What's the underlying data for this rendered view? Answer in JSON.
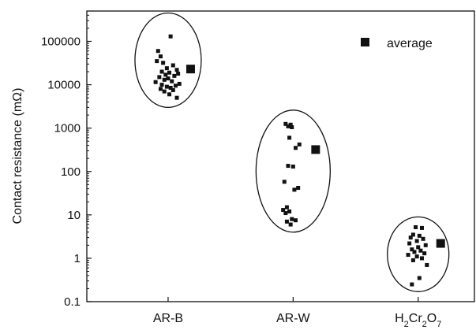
{
  "chart_data": {
    "type": "scatter",
    "y_scale": "log",
    "ylim": [
      0.1,
      500000
    ],
    "ylabel": "Contact resistance (mΩ)",
    "xlabel": "",
    "y_ticks": [
      {
        "value": 100000,
        "label": "100000"
      },
      {
        "value": 10000,
        "label": "10000"
      },
      {
        "value": 1000,
        "label": "1000"
      },
      {
        "value": 100,
        "label": "100"
      },
      {
        "value": 10,
        "label": "10"
      },
      {
        "value": 1,
        "label": "1"
      },
      {
        "value": 0.1,
        "label": "0.1"
      }
    ],
    "categories": [
      {
        "id": "ar-b",
        "label": "AR-B",
        "formula": null
      },
      {
        "id": "ar-w",
        "label": "AR-W",
        "formula": null
      },
      {
        "id": "h2cr2o7",
        "label": "H2Cr2O7",
        "formula": [
          {
            "t": "H"
          },
          {
            "t": "2",
            "sub": true
          },
          {
            "t": "Cr"
          },
          {
            "t": "2",
            "sub": true
          },
          {
            "t": "O"
          },
          {
            "t": "7",
            "sub": true
          }
        ]
      }
    ],
    "legend": {
      "label": "average",
      "position": "top-right"
    },
    "series": [
      {
        "category": "ar-b",
        "points": [
          {
            "x": 1.02,
            "y": 130000
          },
          {
            "x": 0.92,
            "y": 60000
          },
          {
            "x": 0.94,
            "y": 45000
          },
          {
            "x": 0.91,
            "y": 35000
          },
          {
            "x": 0.96,
            "y": 32000
          },
          {
            "x": 1.04,
            "y": 28000
          },
          {
            "x": 0.99,
            "y": 24000
          },
          {
            "x": 1.07,
            "y": 22000
          },
          {
            "x": 0.95,
            "y": 20000
          },
          {
            "x": 1.01,
            "y": 19000
          },
          {
            "x": 1.08,
            "y": 18000
          },
          {
            "x": 0.98,
            "y": 17000
          },
          {
            "x": 1.05,
            "y": 16000
          },
          {
            "x": 0.93,
            "y": 15000
          },
          {
            "x": 1.0,
            "y": 14000
          },
          {
            "x": 0.97,
            "y": 13000
          },
          {
            "x": 1.03,
            "y": 12000
          },
          {
            "x": 0.9,
            "y": 11500
          },
          {
            "x": 1.09,
            "y": 10500
          },
          {
            "x": 0.95,
            "y": 10000
          },
          {
            "x": 1.06,
            "y": 9500
          },
          {
            "x": 0.99,
            "y": 9000
          },
          {
            "x": 1.02,
            "y": 8500
          },
          {
            "x": 0.94,
            "y": 8000
          },
          {
            "x": 1.04,
            "y": 7500
          },
          {
            "x": 0.97,
            "y": 7000
          },
          {
            "x": 1.01,
            "y": 6000
          },
          {
            "x": 1.07,
            "y": 5000
          }
        ],
        "average": 23000
      },
      {
        "category": "ar-w",
        "points": [
          {
            "x": 1.94,
            "y": 1250
          },
          {
            "x": 1.98,
            "y": 1200
          },
          {
            "x": 1.96,
            "y": 1100
          },
          {
            "x": 1.99,
            "y": 1050
          },
          {
            "x": 1.97,
            "y": 600
          },
          {
            "x": 2.05,
            "y": 420
          },
          {
            "x": 2.02,
            "y": 350
          },
          {
            "x": 1.96,
            "y": 135
          },
          {
            "x": 2.0,
            "y": 130
          },
          {
            "x": 1.93,
            "y": 58
          },
          {
            "x": 2.04,
            "y": 42
          },
          {
            "x": 2.01,
            "y": 38
          },
          {
            "x": 1.95,
            "y": 15
          },
          {
            "x": 1.92,
            "y": 13
          },
          {
            "x": 1.97,
            "y": 12
          },
          {
            "x": 1.94,
            "y": 11
          },
          {
            "x": 1.99,
            "y": 8
          },
          {
            "x": 2.02,
            "y": 7.5
          },
          {
            "x": 1.95,
            "y": 7
          },
          {
            "x": 1.98,
            "y": 6
          }
        ],
        "average": 320
      },
      {
        "category": "h2cr2o7",
        "points": [
          {
            "x": 2.98,
            "y": 5.2
          },
          {
            "x": 3.03,
            "y": 5.0
          },
          {
            "x": 2.96,
            "y": 3.5
          },
          {
            "x": 3.01,
            "y": 3.3
          },
          {
            "x": 2.94,
            "y": 3.0
          },
          {
            "x": 3.04,
            "y": 2.8
          },
          {
            "x": 2.99,
            "y": 2.5
          },
          {
            "x": 2.93,
            "y": 2.2
          },
          {
            "x": 3.06,
            "y": 2.0
          },
          {
            "x": 3.0,
            "y": 1.8
          },
          {
            "x": 2.95,
            "y": 1.6
          },
          {
            "x": 3.02,
            "y": 1.5
          },
          {
            "x": 2.97,
            "y": 1.4
          },
          {
            "x": 3.05,
            "y": 1.3
          },
          {
            "x": 2.92,
            "y": 1.2
          },
          {
            "x": 2.99,
            "y": 1.1
          },
          {
            "x": 3.03,
            "y": 1.0
          },
          {
            "x": 2.96,
            "y": 0.9
          },
          {
            "x": 3.07,
            "y": 0.7
          },
          {
            "x": 3.01,
            "y": 0.35
          },
          {
            "x": 2.95,
            "y": 0.25
          }
        ],
        "average": 2.2
      }
    ],
    "ellipses": [
      {
        "category": "ar-b",
        "x_center": 1.0,
        "y_top": 450000,
        "y_bottom": 3000
      },
      {
        "category": "ar-w",
        "x_center": 2.0,
        "y_top": 2600,
        "y_bottom": 4
      },
      {
        "category": "h2cr2o7",
        "x_center": 3.0,
        "y_top": 9,
        "y_bottom": 0.17
      }
    ]
  }
}
